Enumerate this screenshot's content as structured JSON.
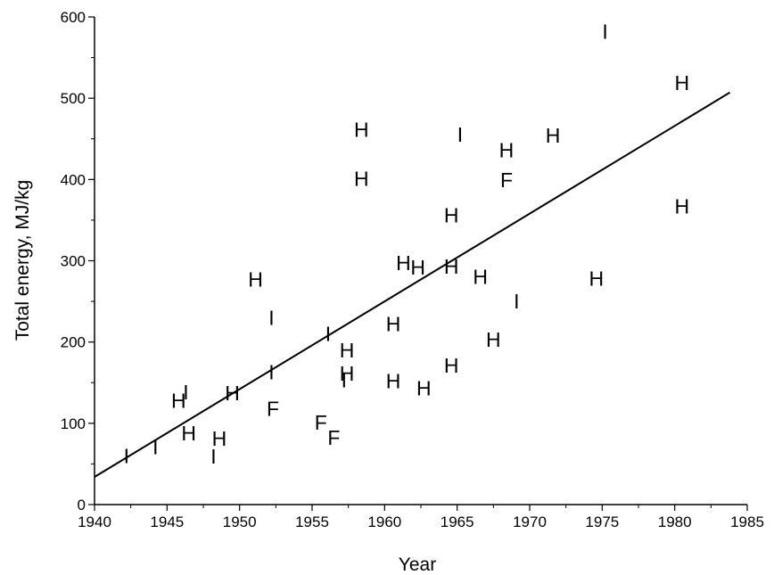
{
  "chart_data": {
    "type": "scatter",
    "title": "",
    "xlabel": "Year",
    "ylabel": "Total energy, MJ/kg",
    "xlim": [
      1940,
      1985
    ],
    "ylim": [
      0,
      600
    ],
    "xticks": [
      "1940",
      "1945",
      "1950",
      "1955",
      "1960",
      "1965",
      "1970",
      "1975",
      "1980",
      "1985"
    ],
    "yticks": [
      "0",
      "100",
      "200",
      "300",
      "400",
      "500",
      "600"
    ],
    "grid": false,
    "legend": "none",
    "colors": {
      "ink": "#000000",
      "background": "#ffffff"
    },
    "points": [
      {
        "label": "I",
        "x": 1942.2,
        "y": 60
      },
      {
        "label": "I",
        "x": 1944.2,
        "y": 71
      },
      {
        "label": "H",
        "x": 1945.8,
        "y": 128
      },
      {
        "label": "I",
        "x": 1946.3,
        "y": 138
      },
      {
        "label": "H",
        "x": 1946.5,
        "y": 88
      },
      {
        "label": "I",
        "x": 1948.2,
        "y": 59
      },
      {
        "label": "H",
        "x": 1948.6,
        "y": 81
      },
      {
        "label": "H",
        "x": 1949.5,
        "y": 137
      },
      {
        "label": "H",
        "x": 1951.1,
        "y": 277
      },
      {
        "label": "I",
        "x": 1952.2,
        "y": 230
      },
      {
        "label": "I",
        "x": 1952.2,
        "y": 163
      },
      {
        "label": "F",
        "x": 1952.3,
        "y": 118
      },
      {
        "label": "F",
        "x": 1955.6,
        "y": 101
      },
      {
        "label": "I",
        "x": 1956.1,
        "y": 210
      },
      {
        "label": "F",
        "x": 1956.5,
        "y": 82
      },
      {
        "label": "H",
        "x": 1957.4,
        "y": 190
      },
      {
        "label": "H",
        "x": 1957.4,
        "y": 161
      },
      {
        "label": "I",
        "x": 1957.2,
        "y": 153
      },
      {
        "label": "H",
        "x": 1958.4,
        "y": 461
      },
      {
        "label": "H",
        "x": 1958.4,
        "y": 401
      },
      {
        "label": "H",
        "x": 1960.6,
        "y": 222
      },
      {
        "label": "H",
        "x": 1960.6,
        "y": 152
      },
      {
        "label": "H",
        "x": 1961.3,
        "y": 297
      },
      {
        "label": "H",
        "x": 1962.3,
        "y": 292
      },
      {
        "label": "H",
        "x": 1962.7,
        "y": 143
      },
      {
        "label": "H",
        "x": 1964.6,
        "y": 356
      },
      {
        "label": "H",
        "x": 1964.6,
        "y": 293
      },
      {
        "label": "H",
        "x": 1964.6,
        "y": 171
      },
      {
        "label": "I",
        "x": 1965.2,
        "y": 455
      },
      {
        "label": "H",
        "x": 1966.6,
        "y": 280
      },
      {
        "label": "H",
        "x": 1967.5,
        "y": 203
      },
      {
        "label": "H",
        "x": 1968.4,
        "y": 436
      },
      {
        "label": "F",
        "x": 1968.4,
        "y": 399
      },
      {
        "label": "I",
        "x": 1969.1,
        "y": 250
      },
      {
        "label": "H",
        "x": 1971.6,
        "y": 454
      },
      {
        "label": "H",
        "x": 1974.6,
        "y": 278
      },
      {
        "label": "I",
        "x": 1975.2,
        "y": 582
      },
      {
        "label": "H",
        "x": 1980.5,
        "y": 519
      },
      {
        "label": "H",
        "x": 1980.5,
        "y": 367
      }
    ],
    "trendline": {
      "x": [
        1940,
        1983.8
      ],
      "y": [
        34,
        507
      ]
    }
  }
}
